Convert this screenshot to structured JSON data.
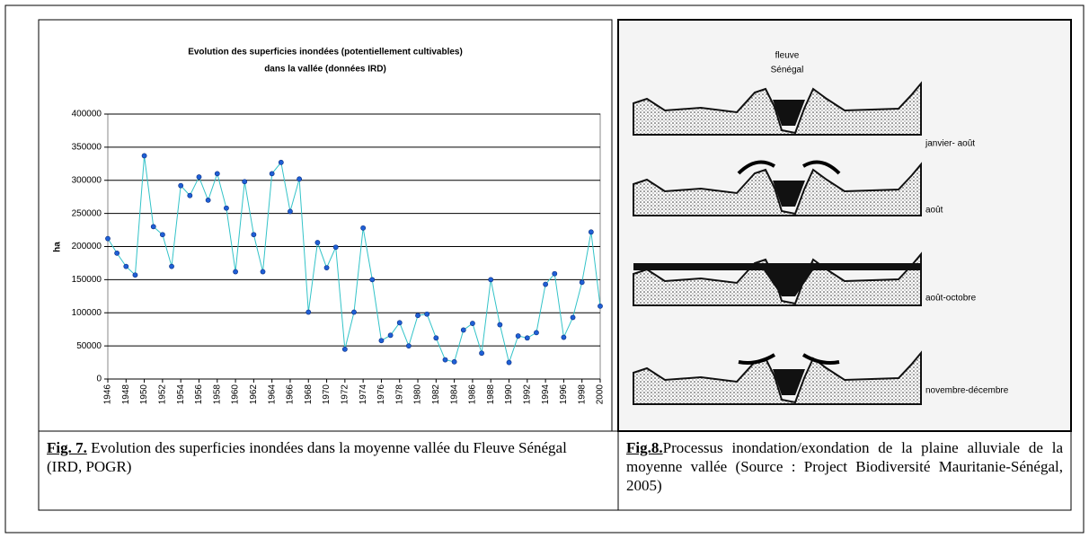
{
  "chart_data": {
    "type": "line",
    "title": [
      "Evolution des superficies inondées (potentiellement cultivables)",
      "dans la vallée (données IRD)"
    ],
    "y_label": "ha",
    "x": [
      1946,
      1947,
      1948,
      1949,
      1950,
      1951,
      1952,
      1953,
      1954,
      1955,
      1956,
      1957,
      1958,
      1959,
      1960,
      1961,
      1962,
      1963,
      1964,
      1965,
      1966,
      1967,
      1968,
      1969,
      1970,
      1971,
      1972,
      1973,
      1974,
      1975,
      1976,
      1977,
      1978,
      1979,
      1980,
      1981,
      1982,
      1983,
      1984,
      1985,
      1986,
      1987,
      1988,
      1989,
      1990,
      1991,
      1992,
      1993,
      1994,
      1995,
      1996,
      1997,
      1998,
      1999,
      2000
    ],
    "series": [
      {
        "color": "#33c3c8",
        "marker_color": "#1f5fd6",
        "values": [
          212000,
          190000,
          170000,
          157000,
          337000,
          230000,
          218000,
          170000,
          292000,
          277000,
          305000,
          270000,
          310000,
          258000,
          162000,
          298000,
          218000,
          162000,
          310000,
          327000,
          253000,
          302000,
          101000,
          206000,
          168000,
          199000,
          45000,
          101000,
          228000,
          150000,
          58000,
          66000,
          85000,
          50000,
          96000,
          98000,
          62000,
          29000,
          26000,
          74000,
          84000,
          39000,
          150000,
          82000,
          25000,
          65000,
          62000,
          70000,
          143000,
          159000,
          63000,
          93000,
          146000,
          222000,
          110000
        ]
      }
    ],
    "xlim": [
      1946,
      2000
    ],
    "xticks": [
      1946,
      1948,
      1950,
      1952,
      1954,
      1956,
      1958,
      1960,
      1962,
      1964,
      1966,
      1968,
      1970,
      1972,
      1974,
      1976,
      1978,
      1980,
      1982,
      1984,
      1986,
      1988,
      1990,
      1992,
      1994,
      1996,
      1998,
      2000
    ],
    "ylim": [
      0,
      400000
    ],
    "yticks": [
      0,
      50000,
      100000,
      150000,
      200000,
      250000,
      300000,
      350000,
      400000
    ],
    "grid": true
  },
  "diagram": {
    "labels": [
      [
        "fleuve",
        "Sénégal"
      ],
      "janvier- août",
      "août",
      "août-octobre",
      "novembre-décembre"
    ]
  },
  "captions": [
    {
      "label": "Fig. 7.",
      "text": " Evolution des superficies inondées dans la moyenne vallée du Fleuve Sénégal (IRD, POGR)"
    },
    {
      "label": "Fig.8.",
      "text": "Processus inondation/exondation de la plaine alluviale de la moyenne vallée (Source : Project Biodiversité Mauritanie-Sénégal, 2005)"
    }
  ]
}
